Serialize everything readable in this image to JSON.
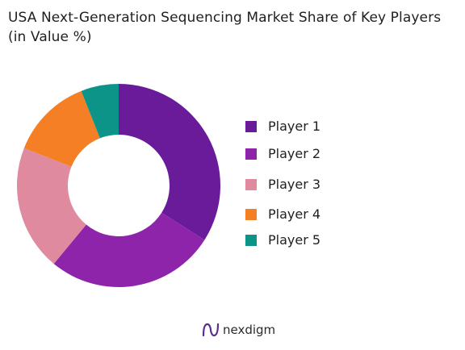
{
  "title": {
    "line1": "USA Next-Generation Sequencing Market Share of Key Players",
    "line2": "(in Value %)"
  },
  "chart_data": {
    "type": "pie",
    "style": "donut",
    "categories": [
      "Player 1",
      "Player 2",
      "Player 3",
      "Player 4",
      "Player 5"
    ],
    "values": [
      34,
      27,
      20,
      13,
      6
    ],
    "colors": [
      "#6a1b9a",
      "#8e24aa",
      "#e08aa0",
      "#f57f25",
      "#0d9488"
    ],
    "legend_position": "right"
  },
  "brand": {
    "name": "nexdigm",
    "logo_icon": "nexdigm-logo-icon"
  }
}
